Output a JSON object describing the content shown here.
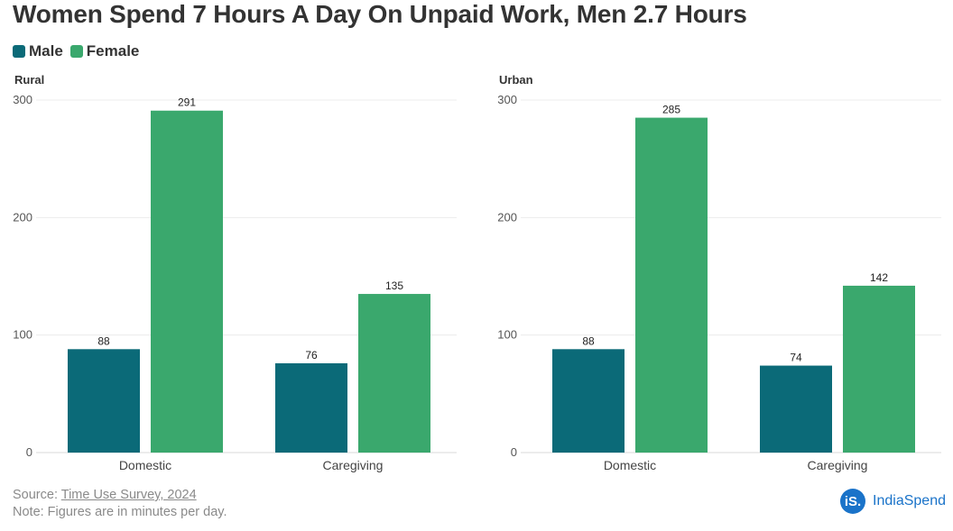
{
  "title": "Women Spend 7 Hours A Day On Unpaid Work, Men 2.7 Hours",
  "legend": [
    {
      "label": "Male",
      "color": "#0b6a78"
    },
    {
      "label": "Female",
      "color": "#3aa86d"
    }
  ],
  "chart_data": [
    {
      "type": "bar",
      "title": "Rural",
      "categories": [
        "Domestic",
        "Caregiving"
      ],
      "series": [
        {
          "name": "Male",
          "values": [
            88,
            76
          ]
        },
        {
          "name": "Female",
          "values": [
            291,
            135
          ]
        }
      ],
      "ylim": [
        0,
        300
      ],
      "yticks": [
        0,
        100,
        200,
        300
      ],
      "grid": true,
      "legend_position": "top-left"
    },
    {
      "type": "bar",
      "title": "Urban",
      "categories": [
        "Domestic",
        "Caregiving"
      ],
      "series": [
        {
          "name": "Male",
          "values": [
            88,
            74
          ]
        },
        {
          "name": "Female",
          "values": [
            285,
            142
          ]
        }
      ],
      "ylim": [
        0,
        300
      ],
      "yticks": [
        0,
        100,
        200,
        300
      ],
      "grid": true,
      "legend_position": "top-left"
    }
  ],
  "footer": {
    "source_prefix": "Source: ",
    "source_link": "Time Use Survey, 2024",
    "note": "Note: Figures are in minutes per day."
  },
  "brand": {
    "logo_mark": "iS.",
    "name": "IndiaSpend"
  }
}
